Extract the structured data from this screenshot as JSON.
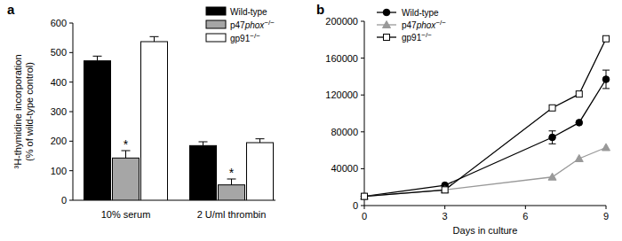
{
  "chart_data": [
    {
      "type": "bar",
      "title": "a",
      "y_label": [
        "³H-thymidine incorporation",
        "(% of wild-type control)"
      ],
      "categories": [
        "10% serum",
        "2 U/ml thrombin"
      ],
      "ylim": [
        0,
        600
      ],
      "yticks": [
        0,
        100,
        200,
        300,
        400,
        500,
        600
      ],
      "legend": "top-right",
      "series": [
        {
          "name": "Wild-type",
          "color": "#000000",
          "values": [
            472,
            185
          ],
          "errors": [
            16,
            13
          ]
        },
        {
          "name": "p47phox−/−",
          "color": "#a6a6a6",
          "values": [
            143,
            52
          ],
          "errors": [
            25,
            20
          ]
        },
        {
          "name": "gp91−/−",
          "color": "#ffffff",
          "values": [
            537,
            195
          ],
          "errors": [
            17,
            13
          ]
        }
      ],
      "annotations": [
        {
          "text": "*",
          "category": "10% serum",
          "series": "p47phox−/−"
        },
        {
          "text": "*",
          "category": "2 U/ml thrombin",
          "series": "p47phox−/−"
        }
      ]
    },
    {
      "type": "line",
      "title": "b",
      "x_label": "Days in culture",
      "x": [
        0,
        3,
        7,
        8,
        9
      ],
      "xlim": [
        0,
        9
      ],
      "xticks": [
        0,
        3,
        6,
        9
      ],
      "ylim": [
        0,
        200000
      ],
      "yticks": [
        0,
        40000,
        80000,
        120000,
        160000,
        200000
      ],
      "legend": "top-left",
      "series": [
        {
          "name": "Wild-type",
          "color": "#000000",
          "marker": "circle",
          "values": [
            10000,
            22000,
            74000,
            90000,
            137000
          ],
          "errors": [
            null,
            null,
            7000,
            null,
            10000
          ]
        },
        {
          "name": "p47phox−/−",
          "color": "#999999",
          "marker": "triangle",
          "values": [
            10000,
            17000,
            31000,
            51000,
            63000
          ],
          "errors": [
            null,
            null,
            null,
            null,
            null
          ]
        },
        {
          "name": "gp91−/−",
          "color": "#000000",
          "marker": "open-square",
          "values": [
            10000,
            17000,
            106000,
            121000,
            181000
          ],
          "errors": [
            null,
            null,
            null,
            null,
            null
          ]
        }
      ]
    }
  ]
}
